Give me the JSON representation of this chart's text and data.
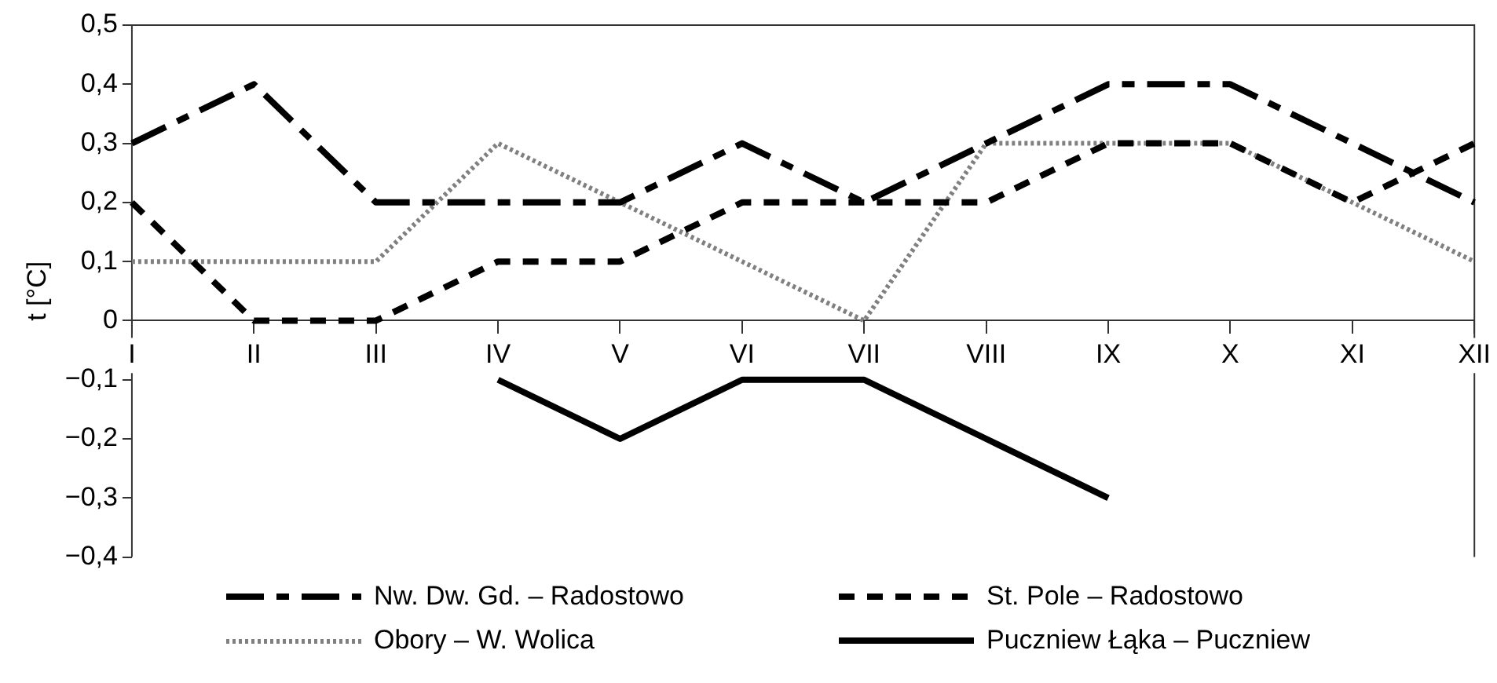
{
  "chart_data": {
    "type": "line",
    "ylabel": "t [°C]",
    "categories": [
      "I",
      "II",
      "III",
      "IV",
      "V",
      "VI",
      "VII",
      "VIII",
      "IX",
      "X",
      "XI",
      "XII"
    ],
    "ylim": [
      -0.4,
      0.5
    ],
    "yticks": [
      {
        "value": -0.4,
        "label": "−0,4"
      },
      {
        "value": -0.3,
        "label": "−0,3"
      },
      {
        "value": -0.2,
        "label": "−0,2"
      },
      {
        "value": -0.1,
        "label": "−0,1"
      },
      0,
      {
        "value": 0.1,
        "label": "0,1"
      },
      {
        "value": 0.2,
        "label": "0,2"
      },
      {
        "value": 0.3,
        "label": "0,3"
      },
      {
        "value": 0.4,
        "label": "0,4"
      },
      {
        "value": 0.5,
        "label": "0,5"
      }
    ],
    "grid": false,
    "legend": "bottom",
    "marker": "none",
    "series": [
      {
        "name": "Nw. Dw. Gd. – Radostowo",
        "color": "#000000",
        "line_style": "dashed",
        "values": [
          0.3,
          0.4,
          0.2,
          0.2,
          0.2,
          0.3,
          0.2,
          0.3,
          0.4,
          0.4,
          0.3,
          0.2
        ]
      },
      {
        "name": "St. Pole – Radostowo",
        "color": "#000000",
        "line_style": "dashed",
        "values": [
          0.2,
          0,
          0,
          0.1,
          0.1,
          0.2,
          0.2,
          0.2,
          0.3,
          0.3,
          0.2,
          0.3
        ]
      },
      {
        "name": "Obory – W. Wolica",
        "color": "#808080",
        "line_style": "dotted",
        "values": [
          0.1,
          0.1,
          0.1,
          0.3,
          0.2,
          0.1,
          0,
          0.3,
          0.3,
          0.3,
          0.2,
          0.1
        ]
      },
      {
        "name": "Puczniew Łąka – Puczniew",
        "color": "#000000",
        "line_style": "solid",
        "values": [
          null,
          null,
          null,
          -0.1,
          -0.2,
          -0.1,
          -0.1,
          -0.2,
          -0.3,
          null,
          null,
          null
        ]
      }
    ]
  }
}
